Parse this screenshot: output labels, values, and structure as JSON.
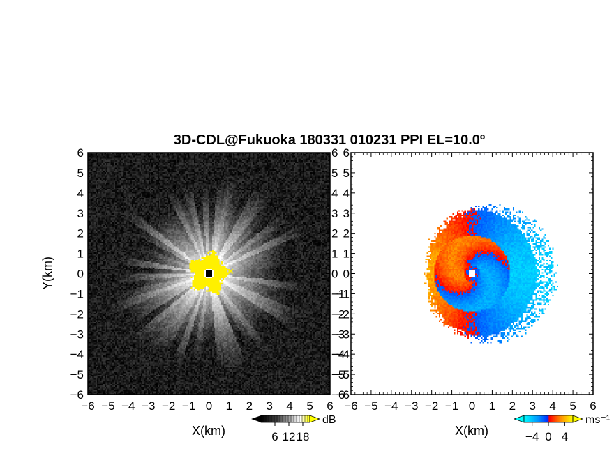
{
  "title": "3D-CDL@Fukuoka 180331 010231 PPI EL=10.0º",
  "chart_data": [
    {
      "type": "heatmap",
      "name": "intensity-ppi",
      "xlabel": "X(km)",
      "ylabel": "Y(km)",
      "xlim": [
        -6,
        6
      ],
      "ylim": [
        -6,
        6
      ],
      "xticks": [
        "−6",
        "−5",
        "−4",
        "−3",
        "−2",
        "−1",
        "0",
        "1",
        "2",
        "3",
        "4",
        "5",
        "6"
      ],
      "yticks": [
        "−6",
        "−5",
        "−4",
        "−3",
        "−2",
        "−1",
        "0",
        "1",
        "2",
        "3",
        "4",
        "5",
        "6"
      ],
      "colorbar": {
        "unit": "dB",
        "ticks": [
          "6",
          "12",
          "18"
        ],
        "tick_values": [
          6,
          12,
          18
        ],
        "range": [
          0,
          21
        ],
        "colors": [
          "#000000",
          "#ffffff",
          "#ffff00"
        ]
      },
      "pattern": "radial streaks from radar origin, bright white near center, saturated yellow within ~1 km"
    },
    {
      "type": "heatmap",
      "name": "doppler-velocity-ppi",
      "xlabel": "X(km)",
      "ylabel": "",
      "xlim": [
        -6,
        6
      ],
      "ylim": [
        -6,
        6
      ],
      "xticks": [
        "−6",
        "−5",
        "−4",
        "−3",
        "−2",
        "−1",
        "0",
        "1",
        "2",
        "3",
        "4",
        "5",
        "6"
      ],
      "yticks": [
        "−6",
        "−5",
        "−4",
        "−3",
        "−2",
        "−1",
        "0",
        "1",
        "2",
        "3",
        "4",
        "5",
        "6"
      ],
      "colorbar": {
        "unit": "ms⁻¹",
        "ticks": [
          "−4",
          "0",
          "4"
        ],
        "tick_values": [
          -4,
          0,
          4
        ],
        "range": [
          -6,
          6
        ],
        "colors": [
          "#00ffff",
          "#0050ff",
          "#ff0000",
          "#ff8c00",
          "#ffff00"
        ]
      },
      "pattern": "negative (blue/cyan) velocities on east side, positive (red/orange/yellow) on west side, data within ~4 km"
    }
  ]
}
